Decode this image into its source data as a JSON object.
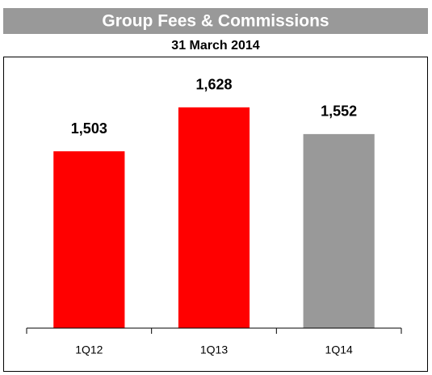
{
  "chart_data": {
    "type": "bar",
    "title": "Group Fees & Commissions",
    "subtitle": "31 March 2014",
    "categories": [
      "1Q12",
      "1Q13",
      "1Q14"
    ],
    "values": [
      1503,
      1628,
      1552
    ],
    "value_labels": [
      "1,503",
      "1,628",
      "1,552"
    ],
    "colors": [
      "#ff0000",
      "#ff0000",
      "#999999"
    ],
    "ylim": [
      1000,
      1800
    ]
  }
}
